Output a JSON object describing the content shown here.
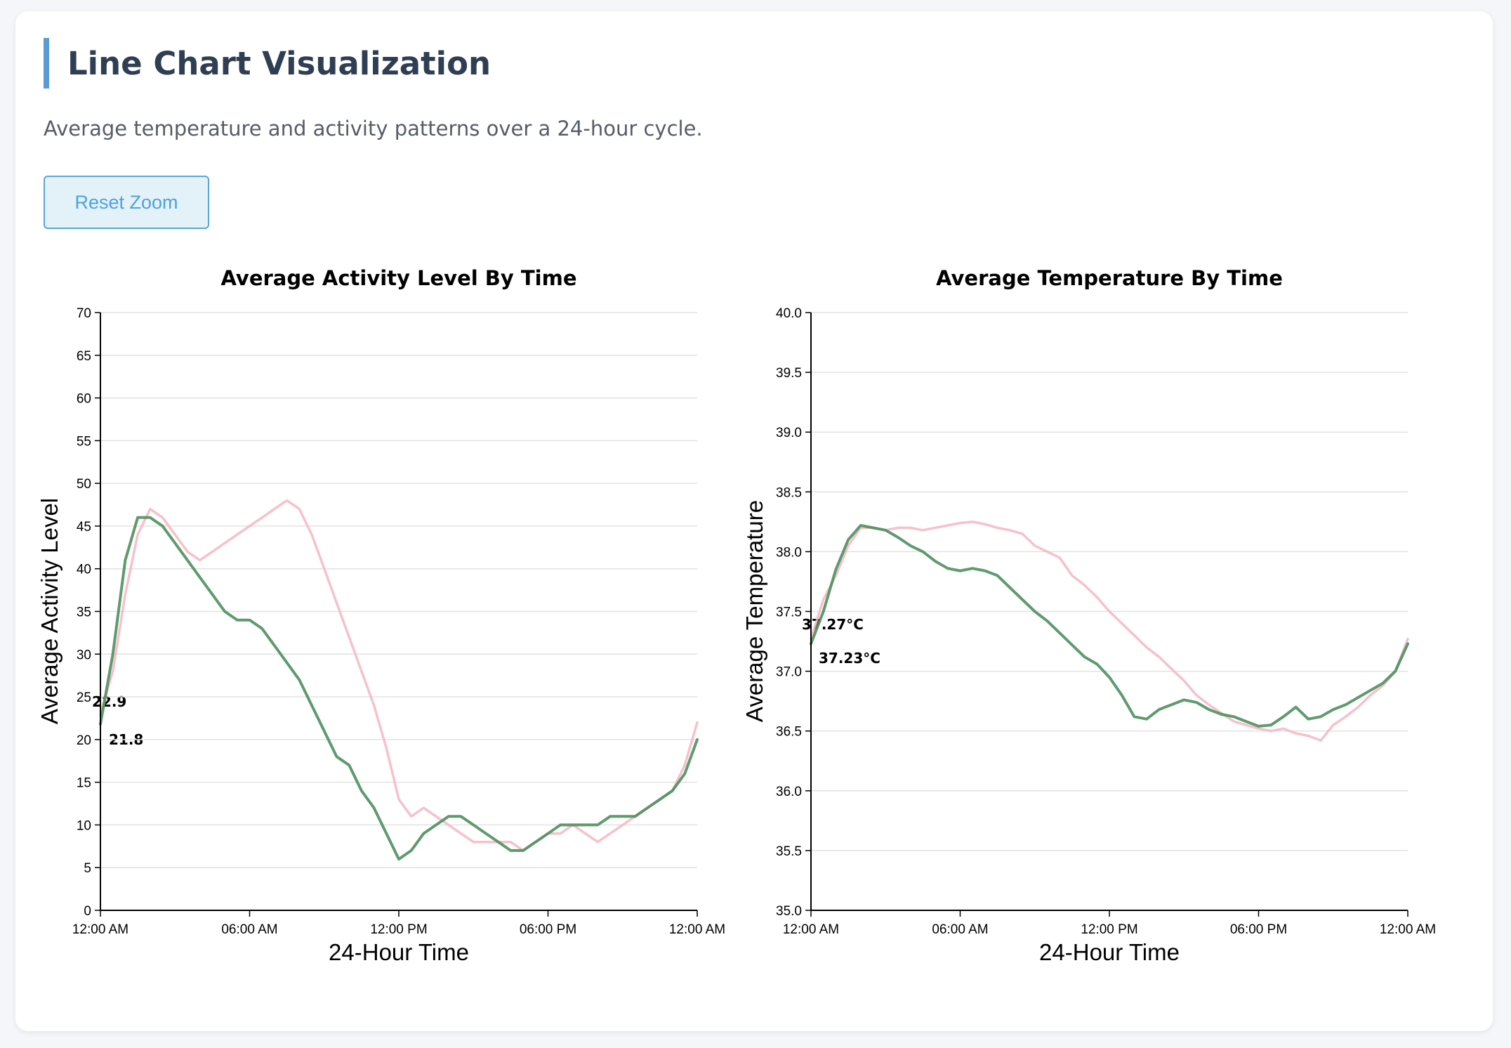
{
  "header": {
    "title": "Line Chart Visualization",
    "subtitle": "Average temperature and activity patterns over a 24-hour cycle.",
    "reset_label": "Reset Zoom"
  },
  "colors": {
    "pink": "#f4b6c2",
    "green": "#4f8f5f",
    "accent": "#5b9bd5"
  },
  "chart_data": [
    {
      "type": "line",
      "title": "Average Activity Level By Time",
      "xlabel": "24-Hour Time",
      "ylabel": "Average Activity Level",
      "xlim": [
        0,
        24
      ],
      "ylim": [
        0,
        70
      ],
      "x_ticks": [
        "12:00 AM",
        "06:00 AM",
        "12:00 PM",
        "06:00 PM",
        "12:00 AM"
      ],
      "y_ticks": [
        "0",
        "5",
        "10",
        "15",
        "20",
        "25",
        "30",
        "35",
        "40",
        "45",
        "50",
        "55",
        "60",
        "65",
        "70"
      ],
      "grid": true,
      "annotations": [
        "22.9",
        "21.8"
      ],
      "series": [
        {
          "color": "#f4b6c2",
          "x": [
            0,
            0.5,
            1,
            1.5,
            2,
            2.5,
            3,
            3.5,
            4,
            4.5,
            5,
            5.5,
            6,
            6.5,
            7,
            7.5,
            8,
            8.5,
            9,
            9.5,
            10,
            10.5,
            11,
            11.5,
            12,
            12.5,
            13,
            13.5,
            14,
            14.5,
            15,
            15.5,
            16,
            16.5,
            17,
            17.5,
            18,
            18.5,
            19,
            19.5,
            20,
            20.5,
            21,
            21.5,
            22,
            22.5,
            23,
            23.5,
            24
          ],
          "y": [
            22.9,
            28,
            37,
            44,
            47,
            46,
            44,
            42,
            41,
            42,
            43,
            44,
            45,
            46,
            47,
            48,
            47,
            44,
            40,
            36,
            32,
            28,
            24,
            19,
            13,
            11,
            12,
            11,
            10,
            9,
            8,
            8,
            8,
            8,
            7,
            8,
            9,
            9,
            10,
            9,
            8,
            9,
            10,
            11,
            12,
            13,
            14,
            17,
            22
          ]
        },
        {
          "color": "#4f8f5f",
          "x": [
            0,
            0.5,
            1,
            1.5,
            2,
            2.5,
            3,
            3.5,
            4,
            4.5,
            5,
            5.5,
            6,
            6.5,
            7,
            7.5,
            8,
            8.5,
            9,
            9.5,
            10,
            10.5,
            11,
            11.5,
            12,
            12.5,
            13,
            13.5,
            14,
            14.5,
            15,
            15.5,
            16,
            16.5,
            17,
            17.5,
            18,
            18.5,
            19,
            19.5,
            20,
            20.5,
            21,
            21.5,
            22,
            22.5,
            23,
            23.5,
            24
          ],
          "y": [
            21.8,
            30,
            41,
            46,
            46,
            45,
            43,
            41,
            39,
            37,
            35,
            34,
            34,
            33,
            31,
            29,
            27,
            24,
            21,
            18,
            17,
            14,
            12,
            9,
            6,
            7,
            9,
            10,
            11,
            11,
            10,
            9,
            8,
            7,
            7,
            8,
            9,
            10,
            10,
            10,
            10,
            11,
            11,
            11,
            12,
            13,
            14,
            16,
            20
          ]
        }
      ]
    },
    {
      "type": "line",
      "title": "Average Temperature By Time",
      "xlabel": "24-Hour Time",
      "ylabel": "Average Temperature",
      "xlim": [
        0,
        24
      ],
      "ylim": [
        35.0,
        40.0
      ],
      "x_ticks": [
        "12:00 AM",
        "06:00 AM",
        "12:00 PM",
        "06:00 PM",
        "12:00 AM"
      ],
      "y_ticks": [
        "35.0",
        "35.5",
        "36.0",
        "36.5",
        "37.0",
        "37.5",
        "38.0",
        "38.5",
        "39.0",
        "39.5",
        "40.0"
      ],
      "grid": true,
      "annotations": [
        "37.27°C",
        "37.23°C"
      ],
      "series": [
        {
          "color": "#f4b6c2",
          "x": [
            0,
            0.5,
            1,
            1.5,
            2,
            2.5,
            3,
            3.5,
            4,
            4.5,
            5,
            5.5,
            6,
            6.5,
            7,
            7.5,
            8,
            8.5,
            9,
            9.5,
            10,
            10.5,
            11,
            11.5,
            12,
            12.5,
            13,
            13.5,
            14,
            14.5,
            15,
            15.5,
            16,
            16.5,
            17,
            17.5,
            18,
            18.5,
            19,
            19.5,
            20,
            20.5,
            21,
            21.5,
            22,
            22.5,
            23,
            23.5,
            24
          ],
          "y": [
            37.27,
            37.6,
            37.8,
            38.05,
            38.2,
            38.2,
            38.18,
            38.2,
            38.2,
            38.18,
            38.2,
            38.22,
            38.24,
            38.25,
            38.23,
            38.2,
            38.18,
            38.15,
            38.05,
            38.0,
            37.95,
            37.8,
            37.72,
            37.62,
            37.5,
            37.4,
            37.3,
            37.2,
            37.12,
            37.02,
            36.92,
            36.8,
            36.72,
            36.65,
            36.58,
            36.55,
            36.52,
            36.5,
            36.52,
            36.48,
            36.46,
            36.42,
            36.55,
            36.62,
            36.7,
            36.8,
            36.88,
            37.0,
            37.27
          ]
        },
        {
          "color": "#4f8f5f",
          "x": [
            0,
            0.5,
            1,
            1.5,
            2,
            2.5,
            3,
            3.5,
            4,
            4.5,
            5,
            5.5,
            6,
            6.5,
            7,
            7.5,
            8,
            8.5,
            9,
            9.5,
            10,
            10.5,
            11,
            11.5,
            12,
            12.5,
            13,
            13.5,
            14,
            14.5,
            15,
            15.5,
            16,
            16.5,
            17,
            17.5,
            18,
            18.5,
            19,
            19.5,
            20,
            20.5,
            21,
            21.5,
            22,
            22.5,
            23,
            23.5,
            24
          ],
          "y": [
            37.23,
            37.5,
            37.85,
            38.1,
            38.22,
            38.2,
            38.18,
            38.12,
            38.05,
            38.0,
            37.92,
            37.86,
            37.84,
            37.86,
            37.84,
            37.8,
            37.7,
            37.6,
            37.5,
            37.42,
            37.32,
            37.22,
            37.12,
            37.06,
            36.95,
            36.8,
            36.62,
            36.6,
            36.68,
            36.72,
            36.76,
            36.74,
            36.68,
            36.64,
            36.62,
            36.58,
            36.54,
            36.55,
            36.62,
            36.7,
            36.6,
            36.62,
            36.68,
            36.72,
            36.78,
            36.84,
            36.9,
            37.0,
            37.23
          ]
        }
      ]
    }
  ]
}
